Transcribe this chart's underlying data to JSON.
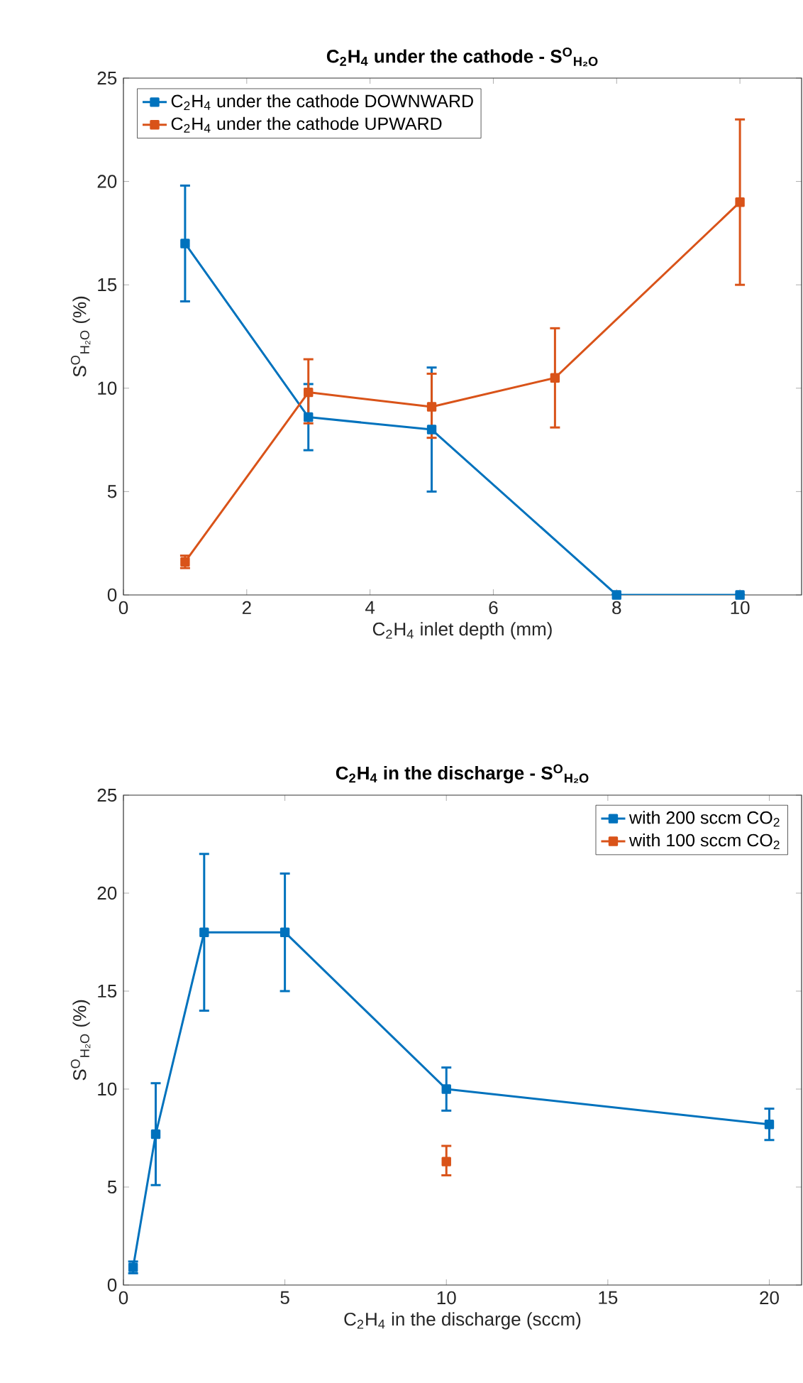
{
  "chart_data": [
    {
      "type": "line",
      "title": "C$_{2}$H$_{4}$ under the cathode - S$^{O}$$_{H₂O}$",
      "xlabel": "C$_{2}$H$_{4}$ inlet depth (mm)",
      "ylabel": "S$^{O}$$_{H₂O}$ (%)",
      "xlim": [
        0,
        11
      ],
      "ylim": [
        0,
        25
      ],
      "xticks": [
        0,
        2,
        4,
        6,
        8,
        10
      ],
      "yticks": [
        0,
        5,
        10,
        15,
        20,
        25
      ],
      "legend": "top left",
      "marker": "square",
      "line_style": "solid",
      "series": [
        {
          "name": "C$_{2}$H$_{4}$ under the cathode DOWNWARD",
          "color": "#0072bd",
          "x": [
            1,
            3,
            5,
            8,
            10
          ],
          "values": [
            17,
            8.6,
            8.0,
            0,
            0
          ],
          "errors": [
            [
              14.2,
              19.8
            ],
            [
              7.0,
              10.2
            ],
            [
              5.0,
              11.0
            ],
            null,
            null
          ]
        },
        {
          "name": "C$_{2}$H$_{4}$ under the cathode UPWARD",
          "color": "#d95319",
          "x": [
            1,
            3,
            5,
            7,
            10
          ],
          "values": [
            1.6,
            9.8,
            9.1,
            10.5,
            19
          ],
          "errors": [
            [
              1.3,
              1.9
            ],
            [
              8.3,
              11.4
            ],
            [
              7.6,
              10.7
            ],
            [
              8.1,
              12.9
            ],
            [
              15.0,
              23.0
            ]
          ]
        }
      ]
    },
    {
      "type": "line",
      "title": "C$_{2}$H$_{4}$ in the discharge - S$^{O}$$_{H₂O}$",
      "xlabel": "C$_{2}$H$_{4}$ in the discharge (sccm)",
      "ylabel": "S$^{O}$$_{H₂O}$ (%)",
      "xlim": [
        0,
        21
      ],
      "ylim": [
        0,
        25
      ],
      "xticks": [
        0,
        5,
        10,
        15,
        20
      ],
      "yticks": [
        0,
        5,
        10,
        15,
        20,
        25
      ],
      "legend": "top right",
      "marker": "square",
      "line_style": "solid",
      "series": [
        {
          "name": "with 200 sccm CO$_{2}$",
          "color": "#0072bd",
          "x": [
            0.3,
            1,
            2.5,
            5,
            10,
            20
          ],
          "values": [
            0.9,
            7.7,
            18,
            18,
            10,
            8.2
          ],
          "errors": [
            [
              0.6,
              1.2
            ],
            [
              5.1,
              10.3
            ],
            [
              14.0,
              22.0
            ],
            [
              15.0,
              21.0
            ],
            [
              8.9,
              11.1
            ],
            [
              7.4,
              9.0
            ]
          ]
        },
        {
          "name": "with 100 sccm CO$_{2}$",
          "color": "#d95319",
          "x": [
            10
          ],
          "values": [
            6.3
          ],
          "errors": [
            [
              5.6,
              7.1
            ]
          ]
        }
      ]
    }
  ]
}
